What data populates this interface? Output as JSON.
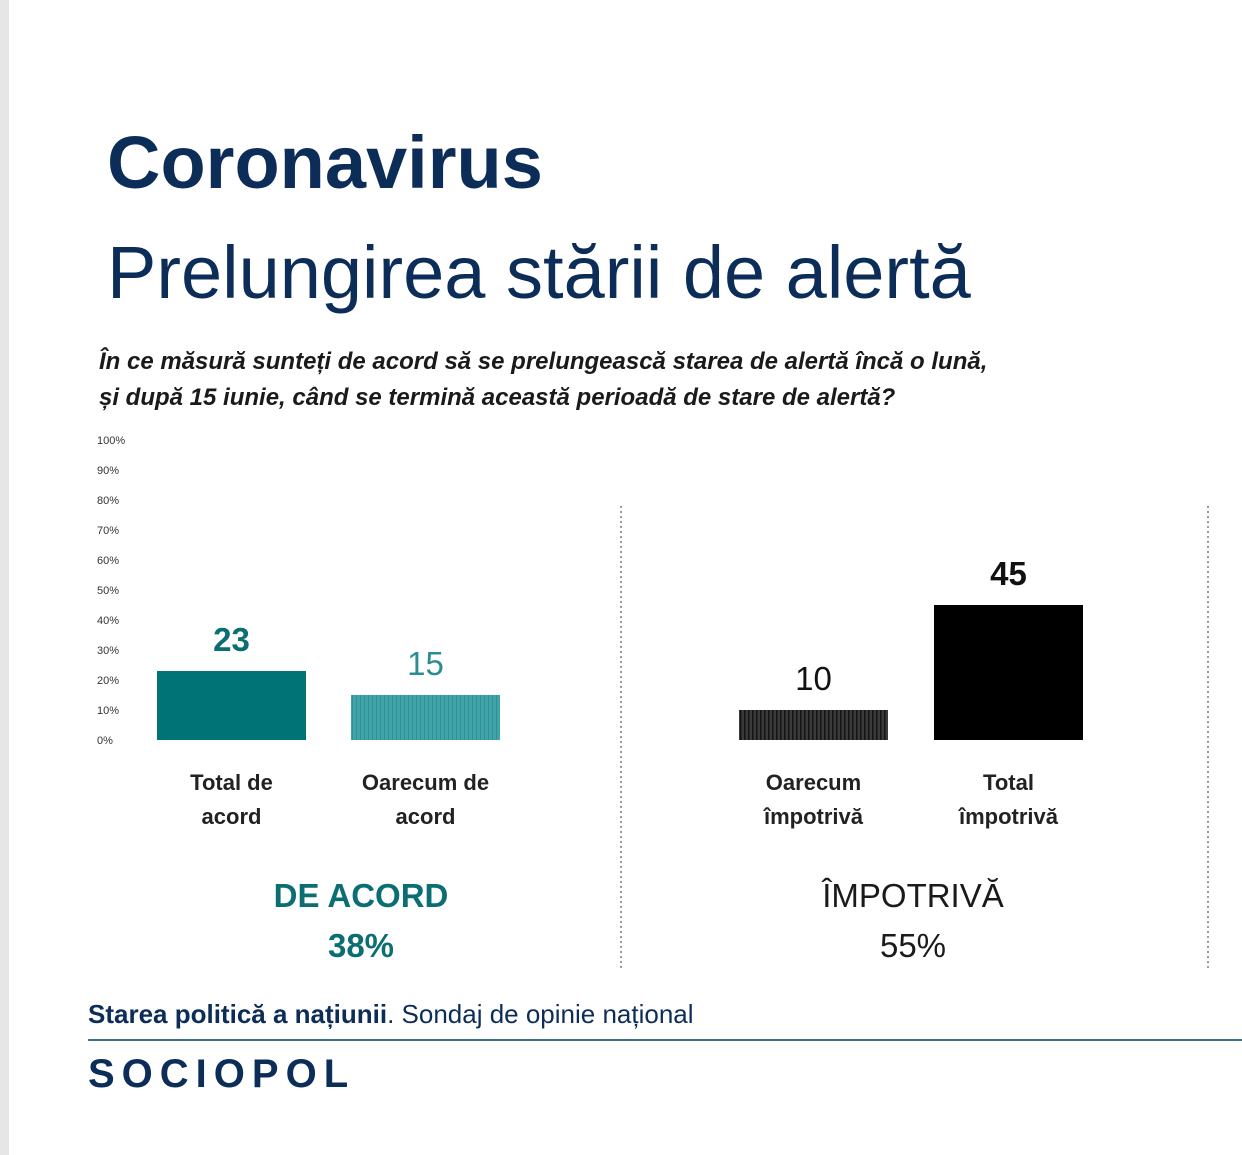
{
  "header": {
    "title": "Coronavirus",
    "subtitle": "Prelungirea stării de alertă",
    "question_line1": "În ce măsură sunteți de acord să se prelungească starea de alertă încă o lună,",
    "question_line2": "și după 15 iunie, când se termină această perioadă de stare de alertă?"
  },
  "chart_data": {
    "type": "bar",
    "ylim": [
      0,
      100
    ],
    "yticks": [
      "0%",
      "10%",
      "20%",
      "30%",
      "40%",
      "50%",
      "60%",
      "70%",
      "80%",
      "90%",
      "100%"
    ],
    "categories": [
      "Total de acord",
      "Oarecum de acord",
      "Oarecum împotrivă",
      "Total împotrivă"
    ],
    "category_lines": [
      [
        "Total de",
        "acord"
      ],
      [
        "Oarecum de",
        "acord"
      ],
      [
        "Oarecum",
        "împotrivă"
      ],
      [
        "Total",
        "împotrivă"
      ]
    ],
    "values": [
      23,
      15,
      10,
      45
    ],
    "bar_colors": [
      "#007377",
      "#3fa3a8",
      "#2e2e2e",
      "#000000"
    ],
    "label_colors": [
      "#0a6e72",
      "#2b8c91",
      "#111111",
      "#111111"
    ],
    "groups": [
      {
        "label": "DE ACORD",
        "total": "38%",
        "color": "#0a6e72"
      },
      {
        "label": "ÎMPOTRIVĂ",
        "total": "55%",
        "color": "#1a1a1a"
      }
    ],
    "grid": false
  },
  "footer": {
    "source_bold": "Starea politică a națiunii",
    "source_rest": ". Sondaj de opinie național",
    "logo": "SOCIOPOL"
  }
}
